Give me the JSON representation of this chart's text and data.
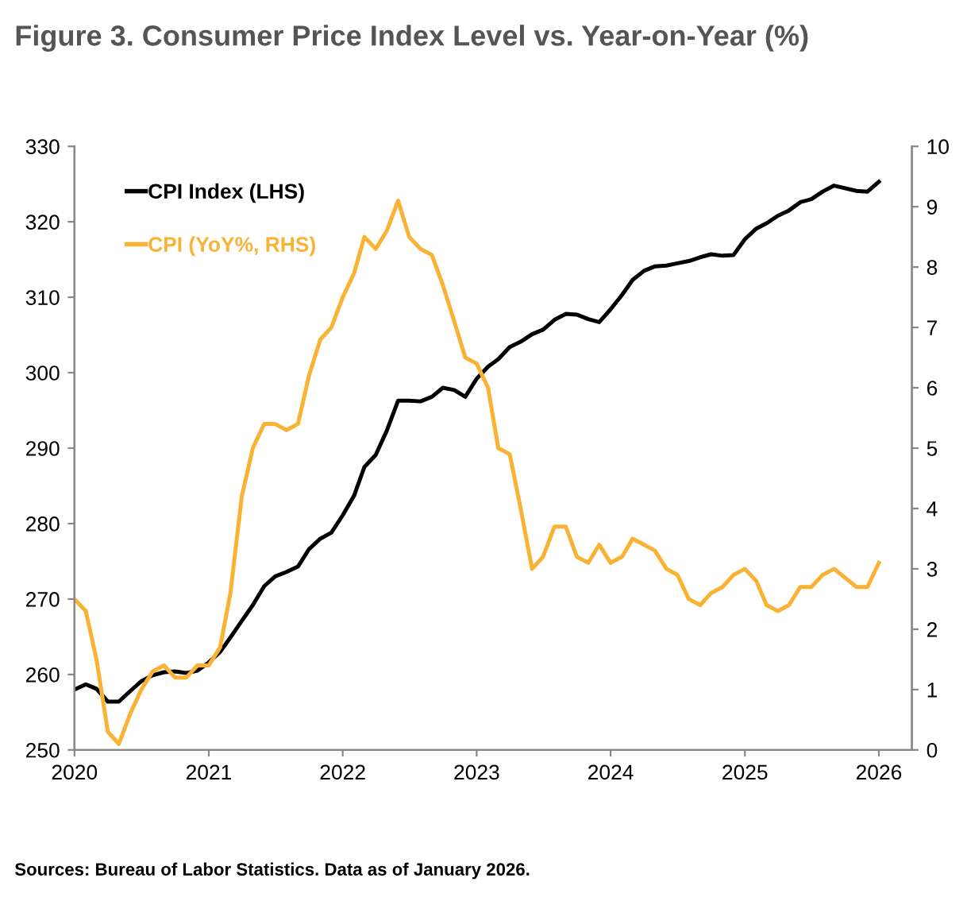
{
  "chart_data": {
    "type": "line",
    "title": "Figure 3. Consumer Price Index Level vs. Year-on-Year (%)",
    "annotations": [
      "Sources: Bureau of Labor Statistics. Data as of January 2026."
    ],
    "x": [
      "2020-01",
      "2020-02",
      "2020-03",
      "2020-04",
      "2020-05",
      "2020-06",
      "2020-07",
      "2020-08",
      "2020-09",
      "2020-10",
      "2020-11",
      "2020-12",
      "2021-01",
      "2021-02",
      "2021-03",
      "2021-04",
      "2021-05",
      "2021-06",
      "2021-07",
      "2021-08",
      "2021-09",
      "2021-10",
      "2021-11",
      "2021-12",
      "2022-01",
      "2022-02",
      "2022-03",
      "2022-04",
      "2022-05",
      "2022-06",
      "2022-07",
      "2022-08",
      "2022-09",
      "2022-10",
      "2022-11",
      "2022-12",
      "2023-01",
      "2023-02",
      "2023-03",
      "2023-04",
      "2023-05",
      "2023-06",
      "2023-07",
      "2023-08",
      "2023-09",
      "2023-10",
      "2023-11",
      "2023-12",
      "2024-01",
      "2024-02",
      "2024-03",
      "2024-04",
      "2024-05",
      "2024-06",
      "2024-07",
      "2024-08",
      "2024-09",
      "2024-10",
      "2024-11",
      "2024-12",
      "2025-01",
      "2025-02",
      "2025-03",
      "2025-04",
      "2025-05",
      "2025-06",
      "2025-07",
      "2025-08",
      "2025-09",
      "2025-11",
      "2025-12",
      "2026-01"
    ],
    "series": [
      {
        "name": "CPI Index (LHS)",
        "color": "#000000",
        "axis": "y",
        "values": [
          258.0,
          258.7,
          258.1,
          256.4,
          256.4,
          257.8,
          259.1,
          259.9,
          260.3,
          260.4,
          260.2,
          260.5,
          261.6,
          263.0,
          264.9,
          267.1,
          269.2,
          271.7,
          273.0,
          273.6,
          274.3,
          276.6,
          278.0,
          278.8,
          281.1,
          283.7,
          287.5,
          289.1,
          292.3,
          296.3,
          296.3,
          296.2,
          296.8,
          298.0,
          297.7,
          296.8,
          299.2,
          300.8,
          301.8,
          303.4,
          304.1,
          305.1,
          305.7,
          307.0,
          307.8,
          307.7,
          307.1,
          306.7,
          308.4,
          310.3,
          312.3,
          313.5,
          314.1,
          314.2,
          314.5,
          314.8,
          315.3,
          315.7,
          315.5,
          315.6,
          317.7,
          319.1,
          319.8,
          320.8,
          321.5,
          322.6,
          323.0,
          324.0,
          324.8,
          324.1,
          324.0,
          325.3
        ]
      },
      {
        "name": "CPI (YoY%, RHS)",
        "color": "#f9b233",
        "axis": "y2",
        "values": [
          2.5,
          2.3,
          1.5,
          0.3,
          0.1,
          0.6,
          1.0,
          1.3,
          1.4,
          1.2,
          1.2,
          1.4,
          1.4,
          1.7,
          2.6,
          4.2,
          5.0,
          5.4,
          5.4,
          5.3,
          5.4,
          6.2,
          6.8,
          7.0,
          7.5,
          7.9,
          8.5,
          8.3,
          8.6,
          9.1,
          8.5,
          8.3,
          8.2,
          7.7,
          7.1,
          6.5,
          6.4,
          6.0,
          5.0,
          4.9,
          4.0,
          3.0,
          3.2,
          3.7,
          3.7,
          3.2,
          3.1,
          3.4,
          3.1,
          3.2,
          3.5,
          3.4,
          3.3,
          3.0,
          2.9,
          2.5,
          2.4,
          2.6,
          2.7,
          2.9,
          3.0,
          2.8,
          2.4,
          2.3,
          2.4,
          2.7,
          2.7,
          2.9,
          3.0,
          2.7,
          2.7,
          3.1
        ]
      }
    ],
    "xlim": [
      "2020-01-01",
      "2026-04-01"
    ],
    "xticks": [
      {
        "value": "2020-01-01",
        "label": "2020"
      },
      {
        "value": "2021-01-01",
        "label": "2021"
      },
      {
        "value": "2022-01-01",
        "label": "2022"
      },
      {
        "value": "2023-01-01",
        "label": "2023"
      },
      {
        "value": "2024-01-01",
        "label": "2024"
      },
      {
        "value": "2025-01-01",
        "label": "2025"
      },
      {
        "value": "2026-01-01",
        "label": "2026"
      }
    ],
    "ylim": [
      250,
      330
    ],
    "yticks": [
      250,
      260,
      270,
      280,
      290,
      300,
      310,
      320,
      330
    ],
    "y2lim": [
      0,
      10
    ],
    "y2ticks": [
      0,
      1,
      2,
      3,
      4,
      5,
      6,
      7,
      8,
      9,
      10
    ],
    "legend": "top left",
    "grid": false,
    "line_style": "solid",
    "marker": "none"
  }
}
